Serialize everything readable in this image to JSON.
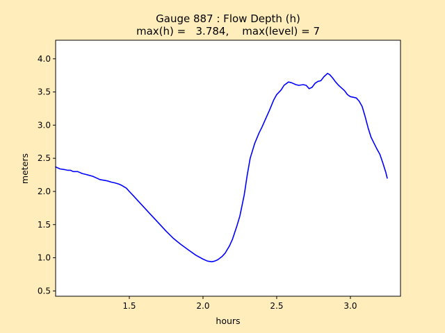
{
  "chart_data": {
    "type": "line",
    "title_line1": "Gauge 887 : Flow Depth (h)",
    "title_line2": "max(h) =   3.784,    max(level) = 7",
    "xlabel": "hours",
    "ylabel": "meters",
    "xlim": [
      1.0,
      3.34
    ],
    "ylim": [
      0.42,
      4.28
    ],
    "xticks": [
      {
        "value": 1.5,
        "label": "1.5"
      },
      {
        "value": 2.0,
        "label": "2.0"
      },
      {
        "value": 2.5,
        "label": "2.5"
      },
      {
        "value": 3.0,
        "label": "3.0"
      }
    ],
    "yticks": [
      {
        "value": 0.5,
        "label": "0.5"
      },
      {
        "value": 1.0,
        "label": "1.0"
      },
      {
        "value": 1.5,
        "label": "1.5"
      },
      {
        "value": 2.0,
        "label": "2.0"
      },
      {
        "value": 2.5,
        "label": "2.5"
      },
      {
        "value": 3.0,
        "label": "3.0"
      },
      {
        "value": 3.5,
        "label": "3.5"
      },
      {
        "value": 4.0,
        "label": "4.0"
      }
    ],
    "grid": false,
    "series": [
      {
        "color": "#0000ff",
        "points": [
          [
            1.0,
            2.37
          ],
          [
            1.03,
            2.34
          ],
          [
            1.06,
            2.33
          ],
          [
            1.08,
            2.32
          ],
          [
            1.1,
            2.32
          ],
          [
            1.12,
            2.3
          ],
          [
            1.15,
            2.3
          ],
          [
            1.18,
            2.27
          ],
          [
            1.2,
            2.26
          ],
          [
            1.25,
            2.23
          ],
          [
            1.28,
            2.2
          ],
          [
            1.3,
            2.18
          ],
          [
            1.35,
            2.16
          ],
          [
            1.38,
            2.14
          ],
          [
            1.4,
            2.13
          ],
          [
            1.43,
            2.11
          ],
          [
            1.45,
            2.09
          ],
          [
            1.48,
            2.05
          ],
          [
            1.5,
            2.0
          ],
          [
            1.53,
            1.93
          ],
          [
            1.55,
            1.88
          ],
          [
            1.6,
            1.76
          ],
          [
            1.65,
            1.64
          ],
          [
            1.7,
            1.52
          ],
          [
            1.75,
            1.4
          ],
          [
            1.8,
            1.29
          ],
          [
            1.85,
            1.2
          ],
          [
            1.9,
            1.12
          ],
          [
            1.95,
            1.04
          ],
          [
            2.0,
            0.98
          ],
          [
            2.03,
            0.95
          ],
          [
            2.06,
            0.94
          ],
          [
            2.08,
            0.95
          ],
          [
            2.1,
            0.97
          ],
          [
            2.13,
            1.02
          ],
          [
            2.15,
            1.07
          ],
          [
            2.18,
            1.18
          ],
          [
            2.2,
            1.28
          ],
          [
            2.23,
            1.48
          ],
          [
            2.25,
            1.63
          ],
          [
            2.28,
            1.95
          ],
          [
            2.3,
            2.25
          ],
          [
            2.32,
            2.5
          ],
          [
            2.35,
            2.72
          ],
          [
            2.38,
            2.88
          ],
          [
            2.4,
            2.97
          ],
          [
            2.43,
            3.12
          ],
          [
            2.45,
            3.22
          ],
          [
            2.48,
            3.38
          ],
          [
            2.5,
            3.46
          ],
          [
            2.53,
            3.53
          ],
          [
            2.55,
            3.6
          ],
          [
            2.58,
            3.65
          ],
          [
            2.6,
            3.64
          ],
          [
            2.63,
            3.61
          ],
          [
            2.65,
            3.6
          ],
          [
            2.68,
            3.61
          ],
          [
            2.7,
            3.6
          ],
          [
            2.72,
            3.55
          ],
          [
            2.74,
            3.57
          ],
          [
            2.76,
            3.63
          ],
          [
            2.78,
            3.66
          ],
          [
            2.8,
            3.67
          ],
          [
            2.82,
            3.73
          ],
          [
            2.845,
            3.78
          ],
          [
            2.86,
            3.76
          ],
          [
            2.88,
            3.71
          ],
          [
            2.9,
            3.65
          ],
          [
            2.92,
            3.6
          ],
          [
            2.94,
            3.56
          ],
          [
            2.96,
            3.52
          ],
          [
            2.98,
            3.46
          ],
          [
            3.0,
            3.43
          ],
          [
            3.02,
            3.42
          ],
          [
            3.04,
            3.41
          ],
          [
            3.06,
            3.36
          ],
          [
            3.08,
            3.28
          ],
          [
            3.1,
            3.13
          ],
          [
            3.12,
            2.96
          ],
          [
            3.14,
            2.82
          ],
          [
            3.16,
            2.73
          ],
          [
            3.18,
            2.64
          ],
          [
            3.2,
            2.56
          ],
          [
            3.22,
            2.43
          ],
          [
            3.24,
            2.29
          ],
          [
            3.25,
            2.2
          ]
        ]
      }
    ]
  }
}
